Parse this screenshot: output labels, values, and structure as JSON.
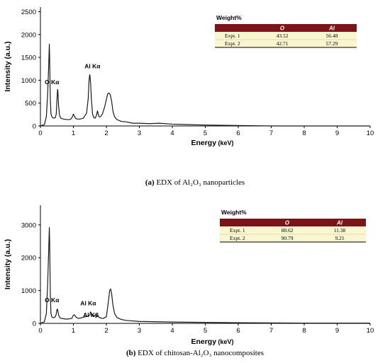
{
  "chart_data": [
    {
      "type": "line",
      "xlabel": "Energy",
      "xunit": "(keV)",
      "ylabel": "Intensity (a.u.)",
      "xlim": [
        0,
        10
      ],
      "ylim": [
        0,
        2600
      ],
      "xticks": [
        "0",
        "1",
        "2",
        "3",
        "4",
        "5",
        "6",
        "7",
        "8",
        "9",
        "10"
      ],
      "yticks": [
        "0",
        "500",
        "1000",
        "1500",
        "2000",
        "2500"
      ],
      "grid": false,
      "x": [
        0.0,
        0.12,
        0.18,
        0.22,
        0.25,
        0.27,
        0.28,
        0.3,
        0.32,
        0.35,
        0.4,
        0.45,
        0.48,
        0.5,
        0.52,
        0.53,
        0.55,
        0.58,
        0.62,
        0.7,
        0.8,
        0.9,
        0.95,
        1.0,
        1.02,
        1.06,
        1.12,
        1.2,
        1.3,
        1.4,
        1.45,
        1.47,
        1.49,
        1.5,
        1.52,
        1.55,
        1.58,
        1.62,
        1.66,
        1.7,
        1.73,
        1.75,
        1.78,
        1.82,
        1.88,
        1.95,
        2.0,
        2.04,
        2.08,
        2.12,
        2.16,
        2.2,
        2.25,
        2.32,
        2.45,
        2.6,
        2.8,
        3.0,
        3.3,
        3.6,
        4.0,
        5.0,
        6.0,
        7.0,
        8.0,
        9.0,
        10.0
      ],
      "y": [
        0,
        30,
        200,
        700,
        1300,
        1790,
        1500,
        600,
        260,
        200,
        170,
        180,
        260,
        550,
        800,
        760,
        450,
        230,
        170,
        150,
        140,
        140,
        170,
        260,
        230,
        170,
        150,
        150,
        170,
        280,
        600,
        950,
        1100,
        1120,
        950,
        550,
        260,
        180,
        170,
        230,
        330,
        270,
        200,
        200,
        260,
        420,
        580,
        700,
        720,
        680,
        540,
        320,
        200,
        140,
        100,
        90,
        60,
        60,
        50,
        60,
        40,
        20,
        10,
        0,
        0,
        0,
        0
      ],
      "peak_labels": [
        {
          "text": "O Kα",
          "x": 0.52,
          "y": 820
        },
        {
          "text": "Al Kα",
          "x": 1.49,
          "y": 1170
        }
      ],
      "legend": "top-right",
      "table": {
        "title": "Weight%",
        "columns": [
          "O",
          "Al"
        ],
        "rows": [
          {
            "label": "Expt. 1",
            "values": [
              "43.52",
              "56.48"
            ]
          },
          {
            "label": "Expt. 2",
            "values": [
              "42.71",
              "57.29"
            ]
          }
        ]
      }
    },
    {
      "type": "line",
      "xlabel": "Energy",
      "xunit": "(keV)",
      "ylabel": "Intensity (a.u.)",
      "xlim": [
        0,
        10
      ],
      "ylim": [
        0,
        3600
      ],
      "xticks": [
        "0",
        "1",
        "2",
        "3",
        "4",
        "5",
        "6",
        "7",
        "8",
        "9",
        "10"
      ],
      "yticks": [
        "0",
        "1000",
        "2000",
        "3000"
      ],
      "grid": false,
      "x": [
        0.0,
        0.12,
        0.18,
        0.22,
        0.25,
        0.27,
        0.28,
        0.3,
        0.32,
        0.35,
        0.4,
        0.45,
        0.48,
        0.5,
        0.52,
        0.54,
        0.56,
        0.6,
        0.7,
        0.8,
        0.95,
        1.0,
        1.03,
        1.08,
        1.15,
        1.25,
        1.35,
        1.45,
        1.5,
        1.52,
        1.55,
        1.6,
        1.65,
        1.7,
        1.72,
        1.75,
        1.8,
        1.9,
        2.0,
        2.06,
        2.1,
        2.13,
        2.16,
        2.2,
        2.25,
        2.32,
        2.45,
        2.6,
        3.0,
        4.0,
        5.0,
        6.0,
        7.0,
        8.0,
        9.0,
        10.0
      ],
      "y": [
        0,
        50,
        300,
        1200,
        2200,
        2920,
        2500,
        900,
        300,
        190,
        170,
        200,
        280,
        420,
        430,
        320,
        230,
        160,
        140,
        130,
        150,
        250,
        260,
        190,
        150,
        170,
        200,
        220,
        250,
        350,
        280,
        210,
        250,
        260,
        230,
        210,
        170,
        150,
        200,
        650,
        1000,
        1050,
        900,
        550,
        300,
        180,
        120,
        90,
        60,
        40,
        30,
        20,
        15,
        10,
        10,
        10
      ],
      "peak_labels": [
        {
          "text": "O Kα",
          "x": 0.52,
          "y": 520
        },
        {
          "text": "Al Kα",
          "x": 1.49,
          "y": 420
        },
        {
          "text": "Al Kβ",
          "x": 1.55,
          "y": 150
        }
      ],
      "legend": "top-right",
      "table": {
        "title": "Weight%",
        "columns": [
          "O",
          "Al"
        ],
        "rows": [
          {
            "label": "Expt. 1",
            "values": [
              "88.62",
              "11.38"
            ]
          },
          {
            "label": "Expt. 2",
            "values": [
              "90.79",
              "9.21"
            ]
          }
        ]
      }
    }
  ],
  "captions": {
    "a": {
      "letter": "(a)",
      "text": " EDX of Al₂O₃ nanoparticles"
    },
    "b": {
      "letter": "(b)",
      "text": " EDX of chitosan-Al₂O₃ nanocomposites"
    }
  },
  "colors": {
    "line": "#1a1a1a",
    "table_header": "#7a1418",
    "table_body": "#faf6cf"
  }
}
